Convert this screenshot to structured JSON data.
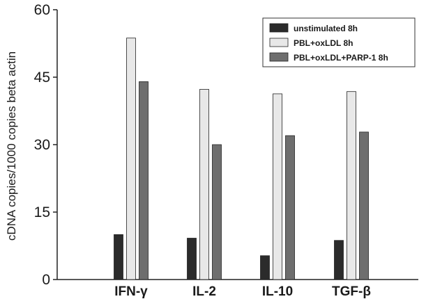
{
  "chart_data": {
    "type": "bar",
    "title": "",
    "xlabel": "",
    "ylabel": "cDNA copies/1000 copies beta actin",
    "ylim": [
      0,
      60
    ],
    "yticks": [
      0,
      15,
      30,
      45,
      60
    ],
    "categories": [
      "IFN-γ",
      "IL-2",
      "IL-10",
      "TGF-β"
    ],
    "legend_position": "top-right",
    "grid": false,
    "series": [
      {
        "name": "unstimulated 8h",
        "color": "#2b2b2b",
        "values": [
          10,
          9.2,
          5.3,
          8.7
        ]
      },
      {
        "name": "PBL+oxLDL 8h",
        "color": "#e8e8e8",
        "values": [
          53.7,
          42.3,
          41.3,
          41.8
        ]
      },
      {
        "name": "PBL+oxLDL+PARP-1 8h",
        "color": "#6e6e6e",
        "values": [
          44,
          30,
          32,
          32.8
        ]
      }
    ]
  }
}
